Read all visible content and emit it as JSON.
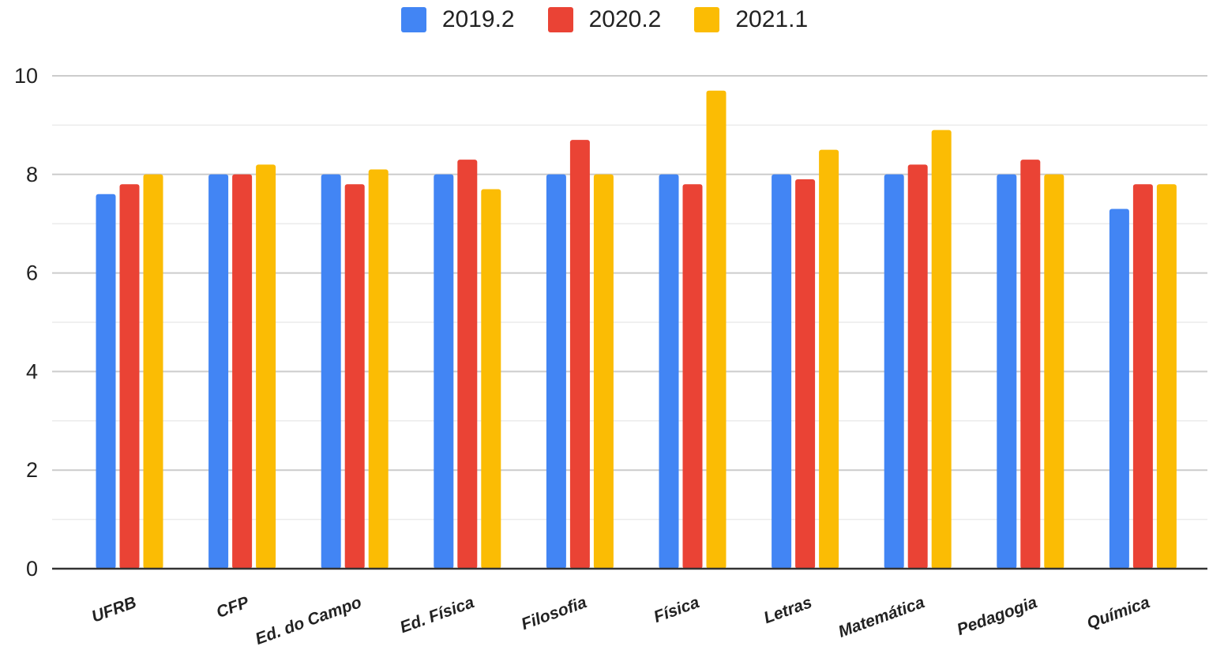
{
  "chart_data": {
    "type": "bar",
    "title": "",
    "xlabel": "",
    "ylabel": "",
    "ylim": [
      0,
      10
    ],
    "yticks": [
      "0",
      "2",
      "4",
      "6",
      "8",
      "10"
    ],
    "grid": true,
    "legend_position": "top",
    "categories": [
      "UFRB",
      "CFP",
      "Ed. do Campo",
      "Ed. Física",
      "Filosofia",
      "Física",
      "Letras",
      "Matemática",
      "Pedagogia",
      "Química"
    ],
    "series": [
      {
        "name": "2019.2",
        "color": "#4285f4",
        "values": [
          7.6,
          8.0,
          8.0,
          8.0,
          8.0,
          8.0,
          8.0,
          8.0,
          8.0,
          7.3
        ]
      },
      {
        "name": "2020.2",
        "color": "#ea4335",
        "values": [
          7.8,
          8.0,
          7.8,
          8.3,
          8.7,
          7.8,
          7.9,
          8.2,
          8.3,
          7.8
        ]
      },
      {
        "name": "2021.1",
        "color": "#fbbc04",
        "values": [
          8.0,
          8.2,
          8.1,
          7.7,
          8.0,
          9.7,
          8.5,
          8.9,
          8.0,
          7.8
        ]
      }
    ]
  }
}
